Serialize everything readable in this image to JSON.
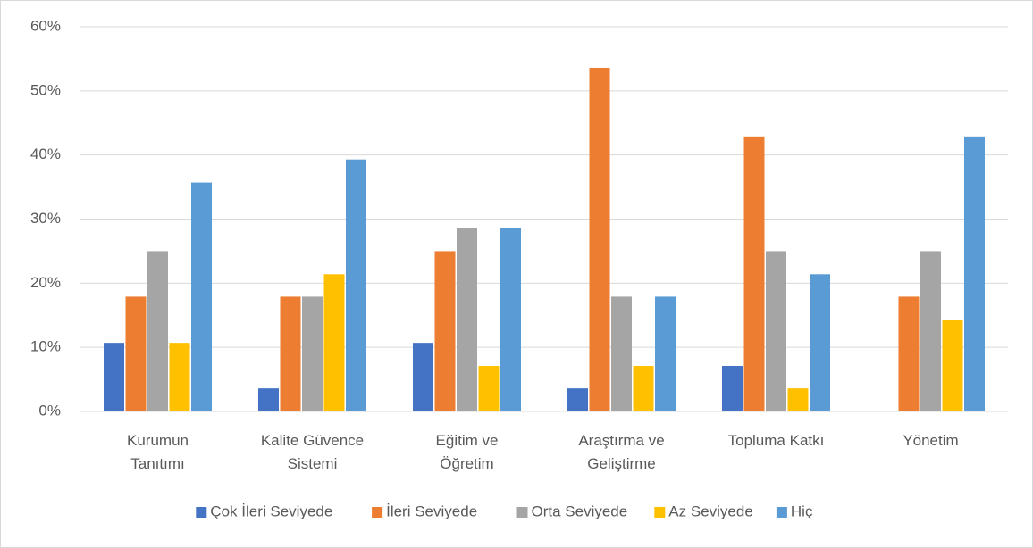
{
  "chart_data": {
    "type": "bar",
    "categories": [
      "Kurumun Tanıtımı",
      "Kalite Güvence Sistemi",
      "Eğitim ve Öğretim",
      "Araştırma ve Geliştirme",
      "Topluma Katkı",
      "Yönetim"
    ],
    "series": [
      {
        "name": "Çok İleri Seviyede",
        "color": "#4472c4",
        "values": [
          10.7,
          3.6,
          10.7,
          3.6,
          7.1,
          0
        ]
      },
      {
        "name": "İleri Seviyede",
        "color": "#ed7d31",
        "values": [
          17.9,
          17.9,
          25,
          53.6,
          42.9,
          17.9
        ]
      },
      {
        "name": "Orta Seviyede",
        "color": "#a5a5a5",
        "values": [
          25,
          17.9,
          28.6,
          17.9,
          25,
          25
        ]
      },
      {
        "name": "Az Seviyede",
        "color": "#ffc000",
        "values": [
          10.7,
          21.4,
          7.1,
          7.1,
          3.6,
          14.3
        ]
      },
      {
        "name": "Hiç",
        "color": "#5b9bd5",
        "values": [
          35.7,
          39.3,
          28.6,
          17.9,
          21.4,
          42.9
        ]
      }
    ],
    "ylim": [
      0,
      60
    ],
    "yticks": [
      {
        "value": 0,
        "label": "0%"
      },
      {
        "value": 10,
        "label": "10%"
      },
      {
        "value": 20,
        "label": "20%"
      },
      {
        "value": 30,
        "label": "30%"
      },
      {
        "value": 40,
        "label": "40%"
      },
      {
        "value": 50,
        "label": "50%"
      },
      {
        "value": 60,
        "label": "60%"
      }
    ],
    "grid": true,
    "legend": "bottom"
  }
}
